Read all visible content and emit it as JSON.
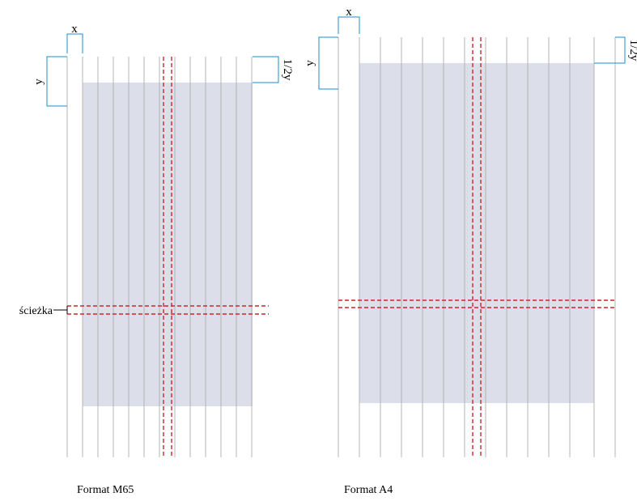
{
  "colors": {
    "text_area": "#dcdeea",
    "grid_line": "#b4b4b4",
    "gutter": "#d4222a",
    "dimension": "#1b8fc9"
  },
  "labels": {
    "x": "x",
    "y": "y",
    "half_y": "1/2y",
    "path": "ścieżka"
  },
  "formats": [
    {
      "name": "Format M65"
    },
    {
      "name": "Format A4"
    }
  ]
}
